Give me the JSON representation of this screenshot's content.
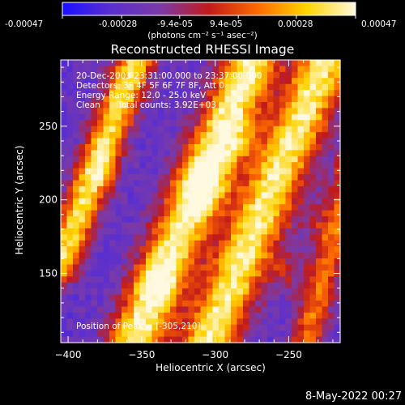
{
  "colorbar": {
    "tick_labels": [
      "-0.00047",
      "-0.00028",
      "-9.4e-05",
      "9.4e-05",
      "0.00028",
      "0.00047"
    ],
    "tick_values": [
      -0.00047,
      -0.00028,
      -9.4e-05,
      9.4e-05,
      0.00028,
      0.00047
    ],
    "range": [
      -0.00047,
      0.00047
    ],
    "units": "(photons cm⁻² s⁻¹ asec⁻²)",
    "colors": [
      "#1a10ff",
      "#5a2fd0",
      "#7a3aa8",
      "#c21a1a",
      "#ff6a00",
      "#ffd400",
      "#fff9e0"
    ]
  },
  "chart_data": {
    "type": "heatmap",
    "title": "Reconstructed RHESSI Image",
    "xlabel": "Heliocentric X (arcsec)",
    "ylabel": "Heliocentric Y (arcsec)",
    "xlim": [
      -405,
      -215
    ],
    "ylim": [
      103,
      295
    ],
    "x_ticks": [
      -400,
      -350,
      -300,
      -250
    ],
    "x_tick_labels": [
      "−400",
      "−350",
      "−300",
      "−250"
    ],
    "y_ticks": [
      150,
      200,
      250
    ],
    "y_tick_labels": [
      "150",
      "200",
      "250"
    ],
    "grid": false,
    "features": [
      {
        "x1": -405,
        "y1": 157,
        "x2": -354,
        "y2": 295,
        "sigma": 9,
        "amp": 0.85
      },
      {
        "x1": -355,
        "y1": 103,
        "x2": -275,
        "y2": 295,
        "sigma": 13,
        "amp": 0.95
      },
      {
        "x1": -305,
        "y1": 103,
        "x2": -225,
        "y2": 295,
        "sigma": 13,
        "amp": 0.9
      },
      {
        "x1": -238,
        "y1": 103,
        "x2": -208,
        "y2": 220,
        "sigma": 8,
        "amp": 0.55
      }
    ],
    "peak_blobs": [
      {
        "x": -305,
        "y": 210,
        "r": 13,
        "amp": 0.45
      },
      {
        "x": -282,
        "y": 238,
        "r": 10,
        "amp": 0.35
      },
      {
        "x": -252,
        "y": 150,
        "r": 10,
        "amp": 0.4
      },
      {
        "x": -235,
        "y": 185,
        "r": 9,
        "amp": 0.3
      },
      {
        "x": -375,
        "y": 220,
        "r": 8,
        "amp": 0.35
      },
      {
        "x": -340,
        "y": 145,
        "r": 10,
        "amp": 0.3
      }
    ],
    "background_level": -0.55
  },
  "annotations": {
    "time_range": "20-Dec-2003 23:31:00.000 to 23:37:00.000",
    "detectors": "Detectors: 3F 4F 5F 6F 7F 8F, Att 0",
    "energy": "Energy Range: 12.0 - 25.0 keV",
    "method": "Clean",
    "counts": "Total counts: 3.92E+03",
    "peak": "Position of Peak = [-305,210]"
  },
  "footer": {
    "date": "8-May-2022 00:27"
  }
}
